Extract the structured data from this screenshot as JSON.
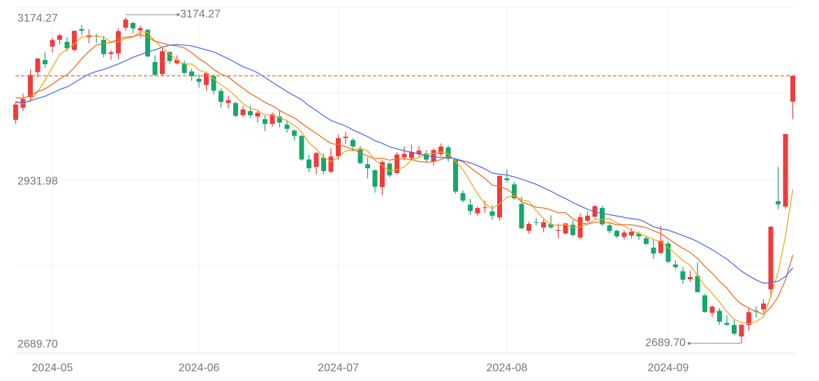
{
  "chart_data": {
    "type": "candlestick",
    "categories": [
      null,
      null,
      null,
      null,
      null,
      "2024-05",
      null,
      null,
      null,
      null,
      null,
      null,
      null,
      null,
      null,
      null,
      null,
      null,
      null,
      null,
      null,
      null,
      null,
      null,
      null,
      "2024-06",
      null,
      null,
      null,
      null,
      null,
      null,
      null,
      null,
      null,
      null,
      null,
      null,
      null,
      null,
      null,
      null,
      null,
      null,
      "2024-07",
      null,
      null,
      null,
      null,
      null,
      null,
      null,
      null,
      null,
      null,
      null,
      null,
      null,
      null,
      null,
      null,
      null,
      null,
      null,
      null,
      null,
      null,
      "2024-08",
      null,
      null,
      null,
      null,
      null,
      null,
      null,
      null,
      null,
      null,
      null,
      null,
      null,
      null,
      null,
      null,
      null,
      null,
      null,
      null,
      null,
      "2024-09",
      null,
      null,
      null,
      null,
      null,
      null,
      null,
      null,
      null,
      null,
      null,
      null,
      null,
      null,
      null,
      null,
      null
    ],
    "open": [
      3022,
      3040,
      3056,
      3093,
      3111,
      3131,
      3141,
      3138,
      3126,
      3157,
      3145,
      3147,
      3141,
      3120,
      3121,
      3159,
      3166,
      3155,
      3156,
      3108,
      3090,
      3123,
      3106,
      3106,
      3094,
      3083,
      3074,
      3087,
      3065,
      3047,
      3047,
      3029,
      3035,
      3027,
      3023,
      3016,
      3027,
      3015,
      3006,
      2998,
      2963,
      2952,
      2966,
      2945,
      2968,
      2995,
      2992,
      2978,
      2956,
      2947,
      2922,
      2957,
      2943,
      2966,
      2965,
      2971,
      2972,
      2960,
      2971,
      2981,
      2963,
      2913,
      2896,
      2883,
      2891,
      2886,
      2877,
      2935,
      2926,
      2897,
      2857,
      2870,
      2862,
      2867,
      2857,
      2853,
      2866,
      2847,
      2872,
      2878,
      2891,
      2865,
      2857,
      2848,
      2850,
      2853,
      2846,
      2832,
      2824,
      2838,
      2807,
      2797,
      2785,
      2790,
      2761,
      2735,
      2738,
      2720,
      2717,
      2700,
      2717,
      2738,
      2740,
      2770,
      2901,
      2893,
      3049
    ],
    "high": [
      3049,
      3061,
      3097,
      3114,
      3123,
      3144,
      3150,
      3145,
      3155,
      3163,
      3157,
      3150,
      3147,
      3126,
      3158,
      3174.27,
      3168,
      3162,
      3157,
      3118,
      3129,
      3124,
      3118,
      3110,
      3098,
      3090,
      3094,
      3090,
      3069,
      3058,
      3049,
      3043,
      3043,
      3036,
      3028,
      3033,
      3036,
      3021,
      3008,
      3000,
      2970,
      2974,
      2972,
      2980,
      3000,
      3004,
      2995,
      2983,
      2966,
      2948,
      2962,
      2959,
      2974,
      2982,
      2985,
      2983,
      2977,
      2980,
      2987,
      2984,
      2964,
      2917,
      2905,
      2893,
      2902,
      2895,
      2939,
      2948,
      2930,
      2908,
      2871,
      2876,
      2874,
      2880,
      2868,
      2869,
      2873,
      2883,
      2886,
      2895,
      2894,
      2868,
      2859,
      2858,
      2861,
      2856,
      2849,
      2843,
      2864,
      2842,
      2813,
      2803,
      2798,
      2810,
      2763,
      2746,
      2742,
      2732,
      2724,
      2718,
      2742,
      2744,
      2755,
      2864,
      2952,
      3001,
      3088
    ],
    "low": [
      3016,
      3035,
      3051,
      3085,
      3099,
      3122,
      3134,
      3124,
      3124,
      3148,
      3136,
      3136,
      3115,
      3111,
      3112,
      3155,
      3151,
      3144,
      3115,
      3087,
      3088,
      3105,
      3104,
      3090,
      3080,
      3070,
      3065,
      3060,
      3040,
      3039,
      3026,
      3026,
      3025,
      3018,
      3005,
      3012,
      3011,
      3003,
      2991,
      2961,
      2944,
      2941,
      2941,
      2942,
      2962,
      2986,
      2975,
      2956,
      2935,
      2914,
      2910,
      2937,
      2941,
      2962,
      2962,
      2967,
      2958,
      2954,
      2967,
      2960,
      2912,
      2899,
      2881,
      2879,
      2884,
      2873,
      2872,
      2929,
      2903,
      2860,
      2853,
      2865,
      2855,
      2860,
      2846,
      2852,
      2849,
      2845,
      2870,
      2875,
      2864,
      2853,
      2846,
      2844,
      2845,
      2843,
      2836,
      2815,
      2823,
      2809,
      2800,
      2778,
      2781,
      2765,
      2735,
      2729,
      2717,
      2716,
      2702,
      2689.7,
      2708,
      2728,
      2735,
      2758,
      2889,
      2890,
      3023
    ],
    "close": [
      3044.82,
      3052.9,
      3088.64,
      3113.04,
      3104.82,
      3140.72,
      3147.74,
      3128.48,
      3154.32,
      3154.55,
      3148.02,
      3145.77,
      3119.9,
      3122.4,
      3154.03,
      3171.15,
      3157.97,
      3158.54,
      3116.39,
      3088.87,
      3124.04,
      3109.57,
      3111.02,
      3091.68,
      3086.81,
      3078.49,
      3091.2,
      3065.4,
      3048.79,
      3051.28,
      3028.05,
      3037.47,
      3028.92,
      3032.63,
      3015.89,
      3030.25,
      3018.05,
      3008.7,
      2998.14,
      2963.1,
      2950,
      2972.53,
      2945.85,
      2967.4,
      2994.73,
      2997.01,
      2982.38,
      2957.57,
      2949.94,
      2922.45,
      2959.37,
      2939.36,
      2970.39,
      2971.3,
      2974.01,
      2976.3,
      2962.85,
      2977.13,
      2982.31,
      2964.22,
      2915.37,
      2901.95,
      2886.43,
      2890.9,
      2891.85,
      2879.3,
      2938.75,
      2932.39,
      2905.34,
      2860.7,
      2867.28,
      2869.9,
      2869.83,
      2862.19,
      2858.2,
      2867.95,
      2850.65,
      2877.36,
      2879.43,
      2893.67,
      2866.66,
      2856.58,
      2848.77,
      2854.37,
      2855.52,
      2848.73,
      2837.43,
      2823.11,
      2842.21,
      2811.04,
      2802.98,
      2784.28,
      2788.31,
      2765.81,
      2736.49,
      2744.19,
      2721.8,
      2717.12,
      2704.09,
      2717.28,
      2736.02,
      2736.81,
      2748.92,
      2863.13,
      2896.31,
      3000.95,
      3087.53
    ],
    "up_color": "#f23a3c",
    "down_color": "#14a86a",
    "lines": [
      {
        "color": "#f5a31a",
        "values": [
          3050,
          3046,
          3051,
          3064,
          3081,
          3100,
          3119,
          3127,
          3135,
          3145,
          3147,
          3146,
          3145,
          3138,
          3138,
          3143,
          3145,
          3153,
          3152,
          3139,
          3129,
          3120,
          3110,
          3105,
          3105,
          3096,
          3092,
          3083,
          3074,
          3067,
          3057,
          3046,
          3039,
          3036,
          3029,
          3029,
          3025,
          3021,
          3014,
          3004,
          2988,
          2979,
          2966,
          2960,
          2966,
          2976,
          2977,
          2980,
          2976,
          2962,
          2954,
          2946,
          2948,
          2952,
          2963,
          2966,
          2971,
          2972,
          2974,
          2972,
          2960,
          2948,
          2930,
          2912,
          2897,
          2890,
          2897,
          2907,
          2909,
          2903,
          2901,
          2887,
          2875,
          2866,
          2865,
          2866,
          2862,
          2863,
          2867,
          2874,
          2874,
          2875,
          2869,
          2864,
          2857,
          2853,
          2849,
          2844,
          2841,
          2832,
          2823,
          2813,
          2806,
          2790,
          2775,
          2764,
          2751,
          2737,
          2725,
          2721,
          2719,
          2722,
          2729,
          2760,
          2796,
          2849,
          2919
        ]
      },
      {
        "color": "#ef6a1f",
        "values": [
          3055,
          3054,
          3058,
          3064,
          3068,
          3075,
          3083,
          3089,
          3100,
          3113,
          3124,
          3133,
          3136,
          3137,
          3142,
          3145,
          3146,
          3149,
          3145,
          3139,
          3136,
          3133,
          3132,
          3129,
          3122,
          3113,
          3106,
          3097,
          3090,
          3086,
          3077,
          3069,
          3061,
          3055,
          3048,
          3043,
          3036,
          3030,
          3025,
          3017,
          3009,
          3002,
          2994,
          2987,
          2985,
          2982,
          2978,
          2973,
          2968,
          2964,
          2965,
          2962,
          2964,
          2964,
          2963,
          2960,
          2959,
          2960,
          2963,
          2968,
          2963,
          2960,
          2951,
          2943,
          2935,
          2925,
          2923,
          2919,
          2911,
          2900,
          2896,
          2892,
          2891,
          2888,
          2884,
          2884,
          2875,
          2869,
          2867,
          2870,
          2870,
          2869,
          2866,
          2866,
          2866,
          2864,
          2862,
          2857,
          2853,
          2845,
          2838,
          2831,
          2825,
          2816,
          2804,
          2794,
          2782,
          2772,
          2758,
          2748,
          2742,
          2737,
          2733,
          2743,
          2759,
          2784,
          2821
        ]
      },
      {
        "color": "#4a6cf0",
        "values": [
          3048,
          3047,
          3050,
          3054,
          3057,
          3062,
          3067,
          3071,
          3077,
          3084,
          3090,
          3094,
          3097,
          3101,
          3105,
          3110,
          3115,
          3119,
          3123,
          3126,
          3130,
          3133,
          3134,
          3133,
          3132,
          3129,
          3126,
          3123,
          3118,
          3113,
          3107,
          3101,
          3097,
          3092,
          3085,
          3078,
          3071,
          3064,
          3058,
          3052,
          3043,
          3036,
          3028,
          3021,
          3017,
          3013,
          3007,
          3002,
          2997,
          2991,
          2987,
          2982,
          2979,
          2976,
          2974,
          2971,
          2969,
          2967,
          2966,
          2966,
          2964,
          2961,
          2958,
          2954,
          2949,
          2943,
          2941,
          2940,
          2937,
          2934,
          2930,
          2926,
          2921,
          2916,
          2910,
          2905,
          2899,
          2894,
          2889,
          2885,
          2883,
          2881,
          2879,
          2877,
          2875,
          2874,
          2869,
          2863,
          2860,
          2858,
          2854,
          2850,
          2846,
          2841,
          2835,
          2829,
          2822,
          2815,
          2806,
          2797,
          2790,
          2784,
          2779,
          2780,
          2782,
          2789,
          2802
        ]
      }
    ],
    "ylim": [
      2689.7,
      3174.27
    ],
    "yticks": [
      3174.27,
      2931.98,
      {
        "value": 2689.7,
        "label": "2689.70"
      }
    ],
    "max_label": "3174.27",
    "min_label": "2689.70",
    "last_price_line_color": "#ef6a1f"
  }
}
